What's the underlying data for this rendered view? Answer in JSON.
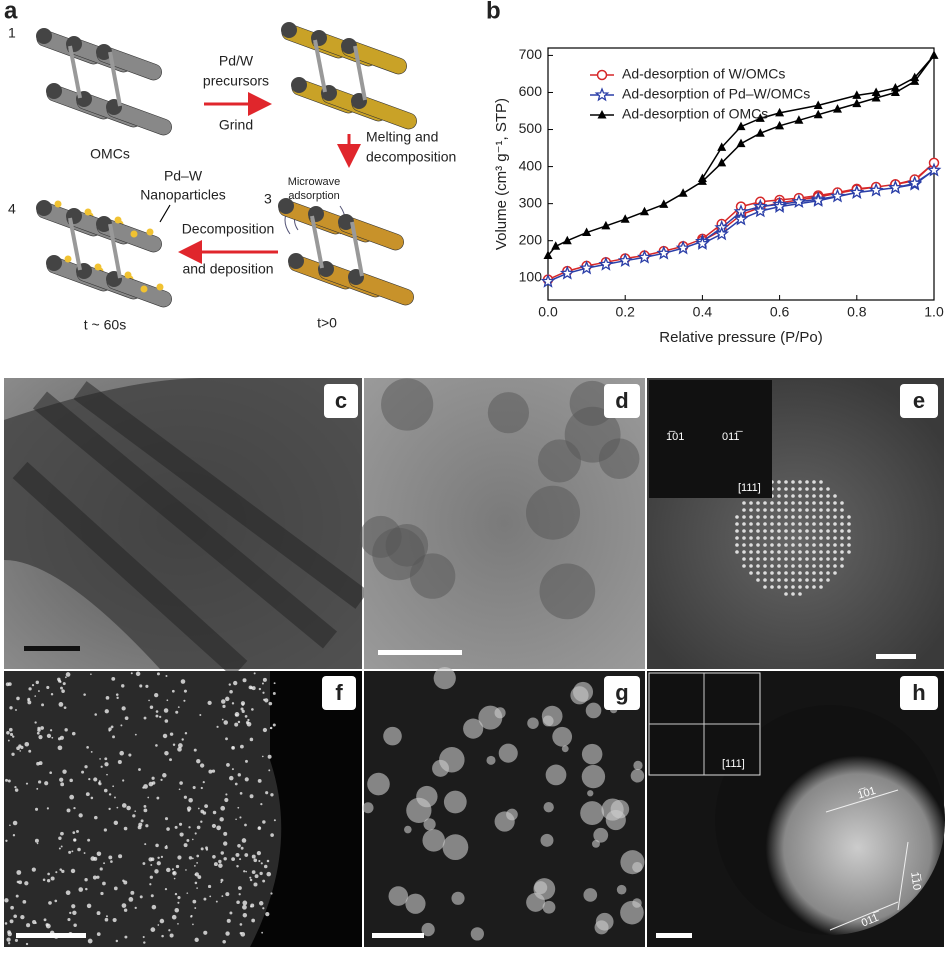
{
  "panel_labels": {
    "a": "a",
    "b": "b",
    "c": "c",
    "d": "d",
    "e": "e",
    "f": "f",
    "g": "g",
    "h": "h"
  },
  "diagram": {
    "step1": "1",
    "omcs": "OMCs",
    "precursors_1": "Pd/W",
    "precursors_2": "precursors",
    "grind": "Grind",
    "melting_1": "Melting and",
    "melting_2": "decomposition",
    "microwave_1": "Microwave",
    "microwave_2": "adsorption",
    "step3": "3",
    "nanoparticles_1": "Pd–W",
    "nanoparticles_2": "Nanoparticles",
    "step4": "4",
    "decomposition_1": "Decomposition",
    "decomposition_2": "and deposition",
    "time4": "t ~ 60s",
    "time3": "t>0"
  },
  "chart_data": {
    "type": "line",
    "x_label": "Relative pressure (P/Po)",
    "y_label": "Volume (cm³ g⁻¹, STP)",
    "xlim": [
      0,
      1
    ],
    "ylim": [
      40,
      720
    ],
    "xticks": [
      {
        "value": 0,
        "label": "0.0"
      },
      0.2,
      0.4,
      0.6,
      0.8,
      {
        "value": 1,
        "label": "1.0"
      }
    ],
    "yticks": [
      100,
      200,
      300,
      400,
      500,
      600,
      700
    ],
    "series": [
      {
        "name": "Ad-desorption of W/OMCs",
        "color": "#d62728",
        "marker": "circle",
        "x": [
          0,
          0.05,
          0.1,
          0.15,
          0.2,
          0.25,
          0.3,
          0.35,
          0.4,
          0.45,
          0.5,
          0.55,
          0.6,
          0.65,
          0.7,
          0.75,
          0.8,
          0.85,
          0.9,
          0.95,
          1.0,
          0.95,
          0.9,
          0.8,
          0.7,
          0.6,
          0.55,
          0.5,
          0.45,
          0.4
        ],
        "values": [
          95,
          118,
          132,
          142,
          152,
          160,
          172,
          185,
          205,
          245,
          292,
          305,
          310,
          315,
          322,
          330,
          340,
          345,
          352,
          362,
          410,
          365,
          352,
          338,
          318,
          302,
          290,
          270,
          228,
          200
        ]
      },
      {
        "name": "Ad-desorption of Pd–W/OMCs",
        "color": "#2b3fa8",
        "marker": "star",
        "x": [
          0,
          0.05,
          0.1,
          0.15,
          0.2,
          0.25,
          0.3,
          0.35,
          0.4,
          0.45,
          0.5,
          0.55,
          0.6,
          0.65,
          0.7,
          0.75,
          0.8,
          0.85,
          0.9,
          0.95,
          1.0,
          0.95,
          0.9,
          0.8,
          0.7,
          0.6,
          0.55,
          0.5,
          0.45,
          0.4
        ],
        "values": [
          90,
          112,
          126,
          136,
          146,
          155,
          166,
          180,
          198,
          235,
          278,
          292,
          298,
          305,
          312,
          320,
          330,
          336,
          343,
          352,
          390,
          355,
          343,
          330,
          308,
          292,
          280,
          258,
          218,
          192
        ]
      },
      {
        "name": "Ad-desorption of OMCs",
        "color": "#000000",
        "marker": "triangle",
        "x": [
          0,
          0.02,
          0.05,
          0.1,
          0.15,
          0.2,
          0.25,
          0.3,
          0.35,
          0.4,
          0.45,
          0.5,
          0.55,
          0.6,
          0.65,
          0.7,
          0.75,
          0.8,
          0.85,
          0.9,
          0.95,
          1.0,
          0.95,
          0.9,
          0.85,
          0.8,
          0.7,
          0.6,
          0.55,
          0.5,
          0.45,
          0.4
        ],
        "values": [
          160,
          185,
          200,
          222,
          240,
          258,
          278,
          298,
          328,
          360,
          410,
          462,
          490,
          510,
          525,
          540,
          555,
          570,
          585,
          600,
          630,
          700,
          640,
          612,
          600,
          592,
          565,
          545,
          530,
          508,
          452,
          368
        ]
      }
    ]
  },
  "micrographs": {
    "e_inset_1": "1̅01",
    "e_inset_2": "011̅",
    "e_inset_zone": "[111]",
    "h_inset_zone": "[111]",
    "h_plane_1": "1̅01",
    "h_plane_2": "1̅10",
    "h_plane_3": "011̅"
  }
}
